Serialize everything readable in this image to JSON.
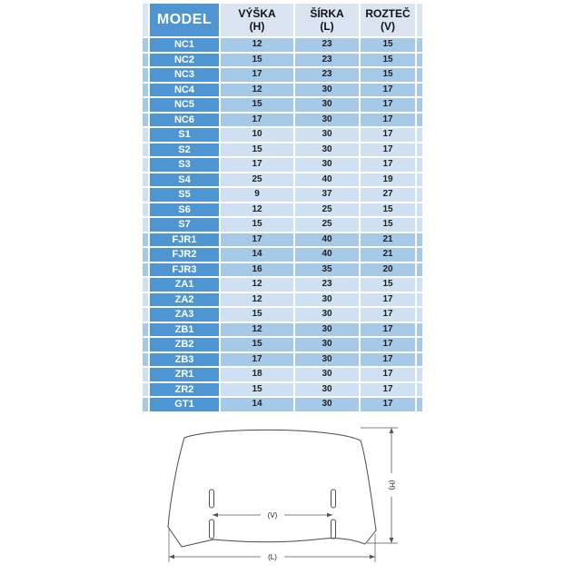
{
  "table": {
    "header": {
      "model": "MODEL",
      "col_h": {
        "line1": "VÝŠKA",
        "line2": "(H)"
      },
      "col_l": {
        "line1": "ŠÍRKA",
        "line2": "(L)"
      },
      "col_v": {
        "line1": "ROZTEČ",
        "line2": "(V)"
      }
    },
    "rows": [
      {
        "model": "NC1",
        "h": "12",
        "l": "23",
        "v": "15",
        "group": "NC"
      },
      {
        "model": "NC2",
        "h": "15",
        "l": "23",
        "v": "15",
        "group": "NC"
      },
      {
        "model": "NC3",
        "h": "17",
        "l": "23",
        "v": "15",
        "group": "NC"
      },
      {
        "model": "NC4",
        "h": "12",
        "l": "30",
        "v": "17",
        "group": "NC"
      },
      {
        "model": "NC5",
        "h": "15",
        "l": "30",
        "v": "17",
        "group": "NC"
      },
      {
        "model": "NC6",
        "h": "17",
        "l": "30",
        "v": "17",
        "group": "NC"
      },
      {
        "model": "S1",
        "h": "10",
        "l": "30",
        "v": "17",
        "group": "S"
      },
      {
        "model": "S2",
        "h": "15",
        "l": "30",
        "v": "17",
        "group": "S"
      },
      {
        "model": "S3",
        "h": "17",
        "l": "30",
        "v": "17",
        "group": "S"
      },
      {
        "model": "S4",
        "h": "25",
        "l": "40",
        "v": "19",
        "group": "S"
      },
      {
        "model": "S5",
        "h": "9",
        "l": "37",
        "v": "27",
        "group": "S"
      },
      {
        "model": "S6",
        "h": "12",
        "l": "25",
        "v": "15",
        "group": "S"
      },
      {
        "model": "S7",
        "h": "15",
        "l": "25",
        "v": "15",
        "group": "S"
      },
      {
        "model": "FJR1",
        "h": "17",
        "l": "40",
        "v": "21",
        "group": "FJR"
      },
      {
        "model": "FJR2",
        "h": "14",
        "l": "40",
        "v": "21",
        "group": "FJR"
      },
      {
        "model": "FJR3",
        "h": "16",
        "l": "35",
        "v": "20",
        "group": "FJR"
      },
      {
        "model": "ZA1",
        "h": "12",
        "l": "23",
        "v": "15",
        "group": "ZA"
      },
      {
        "model": "ZA2",
        "h": "12",
        "l": "30",
        "v": "17",
        "group": "ZA"
      },
      {
        "model": "ZA3",
        "h": "15",
        "l": "30",
        "v": "17",
        "group": "ZA"
      },
      {
        "model": "ZB1",
        "h": "12",
        "l": "30",
        "v": "17",
        "group": "ZB"
      },
      {
        "model": "ZB2",
        "h": "15",
        "l": "30",
        "v": "17",
        "group": "ZB"
      },
      {
        "model": "ZB3",
        "h": "17",
        "l": "30",
        "v": "17",
        "group": "ZB"
      },
      {
        "model": "ZR1",
        "h": "18",
        "l": "30",
        "v": "17",
        "group": "ZR"
      },
      {
        "model": "ZR2",
        "h": "15",
        "l": "30",
        "v": "17",
        "group": "ZR"
      },
      {
        "model": "GT1",
        "h": "14",
        "l": "30",
        "v": "17",
        "group": "GT"
      }
    ]
  },
  "diagram": {
    "label_h": "(H)",
    "label_l": "(L)",
    "label_v": "(V)"
  },
  "colors": {
    "model_blue": "#4e95d2",
    "band_dark": "#a7c9e8",
    "band_light": "#cfe0f2",
    "header_bg": "#dbe5f1"
  }
}
